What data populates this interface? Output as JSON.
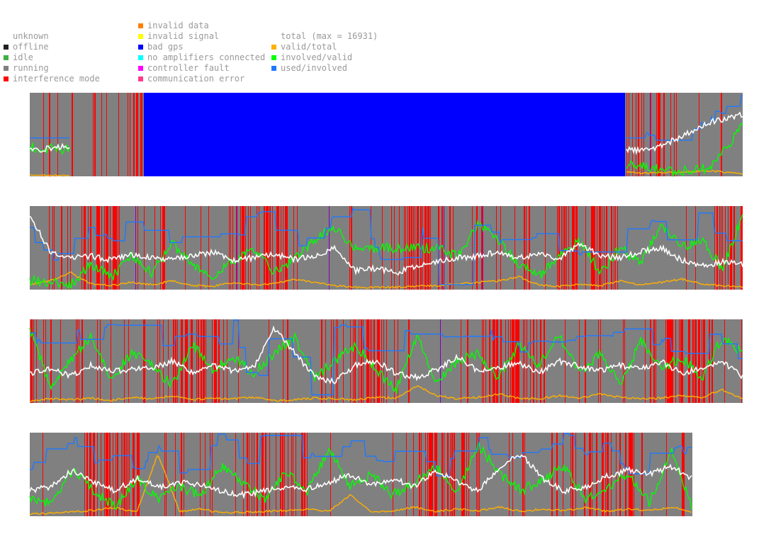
{
  "legend": {
    "status": [
      {
        "label": "unknown",
        "color": ""
      },
      {
        "label": "offline",
        "color": "#202020"
      },
      {
        "label": "idle",
        "color": "#3cb043"
      },
      {
        "label": "running",
        "color": "#808080"
      },
      {
        "label": "interference mode",
        "color": "#ff0000"
      }
    ],
    "errors": [
      {
        "label": "invalid data",
        "color": "#ff8000"
      },
      {
        "label": "invalid signal",
        "color": "#ffff00"
      },
      {
        "label": "bad gps",
        "color": "#0000ff"
      },
      {
        "label": "no amplifiers connected",
        "color": "#00ffff"
      },
      {
        "label": "controller fault",
        "color": "#ff00ff"
      },
      {
        "label": "communication error",
        "color": "#ff3c8c"
      }
    ],
    "metrics": [
      {
        "label": "total (max = 16931)",
        "color": ""
      },
      {
        "label": "valid/total",
        "color": "#ffb000"
      },
      {
        "label": "involved/valid",
        "color": "#00ff00"
      },
      {
        "label": "used/involved",
        "color": "#1e78ff"
      }
    ]
  },
  "colors": {
    "running": "#808080",
    "interference": "#ff0000",
    "bad_gps": "#0000ff",
    "controller_fault": "#8000c0",
    "total": "#ffffff",
    "valid_total": "#ffb000",
    "involved_valid": "#00ff00",
    "used_involved": "#1e78ff"
  },
  "chart_data": {
    "type": "line",
    "total_max": 16931,
    "series_names": [
      "total",
      "valid/total",
      "involved/valid",
      "used/involved"
    ],
    "ylim": [
      0,
      1
    ],
    "rows": [
      {
        "length": 1.0,
        "bad_gps_span": [
          0.16,
          0.835
        ],
        "missing_span": [
          0.057,
          0.835
        ],
        "seed": 11,
        "series": {
          "total": [
            0.3,
            0.35,
            0.33,
            0.36,
            0.35,
            0.34,
            0.28,
            0.45,
            0.9,
            0.55,
            0.35,
            0.4,
            0.45,
            0.3,
            0.42,
            0.38,
            0.32,
            0.36,
            0.34,
            0.3,
            0.45,
            0.65,
            0.75
          ],
          "valid_total": [
            0.0,
            0.0,
            0.0,
            0.0,
            0.0,
            0.0,
            0.0,
            0.02,
            0.05,
            0.03,
            0.01,
            0.02,
            0.06,
            0.03,
            0.04,
            0.08,
            0.02,
            0.1,
            0.05,
            0.03,
            0.04,
            0.06,
            0.02
          ],
          "involved_valid": [
            0.35,
            0.32,
            0.3,
            0.34,
            0.33,
            0.32,
            0.3,
            0.05,
            0.1,
            0.45,
            0.25,
            0.75,
            0.6,
            0.35,
            0.2,
            0.1,
            0.5,
            0.05,
            0.15,
            0.1,
            0.05,
            0.1,
            0.6
          ],
          "used_involved": [
            0.5,
            0.5,
            0.48,
            0.5,
            0.5,
            0.5,
            0.48,
            0.8,
            0.6,
            0.4,
            0.7,
            0.5,
            0.85,
            0.4,
            0.35,
            0.3,
            0.5,
            0.85,
            0.75,
            0.5,
            0.4,
            0.7,
            1.0
          ]
        }
      },
      {
        "length": 1.0,
        "seed": 23,
        "series": {
          "total": [
            0.9,
            0.45,
            0.38,
            0.4,
            0.35,
            0.42,
            0.38,
            0.36,
            0.4,
            0.45,
            0.35,
            0.38,
            0.42,
            0.36,
            0.4,
            0.5,
            0.22,
            0.25,
            0.2,
            0.28,
            0.32,
            0.38,
            0.4,
            0.45,
            0.38,
            0.42,
            0.36,
            0.55,
            0.4,
            0.38,
            0.45,
            0.5,
            0.35,
            0.28,
            0.33,
            0.3
          ],
          "valid_total": [
            0.05,
            0.1,
            0.2,
            0.06,
            0.04,
            0.08,
            0.05,
            0.1,
            0.04,
            0.03,
            0.08,
            0.05,
            0.06,
            0.12,
            0.08,
            0.04,
            0.02,
            0.02,
            0.02,
            0.03,
            0.04,
            0.06,
            0.08,
            0.1,
            0.15,
            0.05,
            0.03,
            0.06,
            0.04,
            0.1,
            0.05,
            0.08,
            0.12,
            0.06,
            0.04,
            0.03
          ],
          "involved_valid": [
            0.1,
            0.08,
            0.05,
            0.3,
            0.15,
            0.4,
            0.2,
            0.55,
            0.3,
            0.15,
            0.35,
            0.5,
            0.2,
            0.35,
            0.6,
            0.75,
            0.5,
            0.5,
            0.5,
            0.5,
            0.5,
            0.4,
            0.8,
            0.6,
            0.3,
            0.15,
            0.4,
            0.6,
            0.2,
            0.5,
            0.3,
            0.8,
            0.5,
            0.6,
            0.25,
            0.9
          ],
          "used_involved": [
            0.7,
            0.3,
            0.6,
            0.75,
            0.55,
            0.9,
            0.65,
            0.5,
            0.85,
            0.7,
            0.6,
            0.95,
            0.8,
            0.45,
            0.7,
            0.85,
            1.0,
            0.5,
            0.0,
            1.0,
            0.0,
            0.9,
            0.8,
            0.6,
            0.55,
            0.7,
            0.5,
            0.4,
            0.85,
            0.6,
            0.95,
            0.7,
            0.5,
            1.0,
            0.55,
            0.7
          ]
        }
      },
      {
        "length": 1.0,
        "seed": 37,
        "series": {
          "total": [
            0.35,
            0.4,
            0.32,
            0.45,
            0.38,
            0.4,
            0.42,
            0.5,
            0.36,
            0.45,
            0.38,
            0.42,
            0.9,
            0.6,
            0.3,
            0.25,
            0.45,
            0.5,
            0.35,
            0.3,
            0.4,
            0.55,
            0.38,
            0.42,
            0.48,
            0.36,
            0.5,
            0.44,
            0.38,
            0.45,
            0.4,
            0.5,
            0.35,
            0.42,
            0.5,
            0.3
          ],
          "valid_total": [
            0.02,
            0.04,
            0.03,
            0.05,
            0.02,
            0.06,
            0.04,
            0.08,
            0.03,
            0.05,
            0.04,
            0.06,
            0.02,
            0.03,
            0.05,
            0.04,
            0.03,
            0.06,
            0.05,
            0.2,
            0.08,
            0.04,
            0.06,
            0.1,
            0.05,
            0.04,
            0.08,
            0.05,
            0.1,
            0.06,
            0.04,
            0.05,
            0.08,
            0.06,
            0.15,
            0.04
          ],
          "involved_valid": [
            0.9,
            0.2,
            0.5,
            0.8,
            0.3,
            0.6,
            0.45,
            0.2,
            0.7,
            0.4,
            0.55,
            0.35,
            0.6,
            0.8,
            0.3,
            0.5,
            0.7,
            0.4,
            0.15,
            0.8,
            0.25,
            0.5,
            0.6,
            0.3,
            0.7,
            0.45,
            0.8,
            0.35,
            0.6,
            0.2,
            0.75,
            0.4,
            0.55,
            0.3,
            0.8,
            0.6
          ],
          "used_involved": [
            0.8,
            0.6,
            0.9,
            0.7,
            1.0,
            0.65,
            0.5,
            0.75,
            0.9,
            0.6,
            1.0,
            0.0,
            1.0,
            0.5,
            0.0,
            1.0,
            0.8,
            0.6,
            1.0,
            0.7,
            0.9,
            0.6,
            1.0,
            0.75,
            0.55,
            0.85,
            0.6,
            0.9,
            0.7,
            0.95,
            0.65,
            0.8,
            0.55,
            0.9,
            0.75,
            0.5
          ]
        }
      },
      {
        "length": 0.929,
        "seed": 53,
        "series": {
          "total": [
            0.3,
            0.35,
            0.55,
            0.4,
            0.3,
            0.45,
            0.35,
            0.4,
            0.38,
            0.3,
            0.25,
            0.3,
            0.35,
            0.32,
            0.4,
            0.5,
            0.38,
            0.45,
            0.35,
            0.55,
            0.4,
            0.3,
            0.6,
            0.75,
            0.45,
            0.3,
            0.35,
            0.48,
            0.55,
            0.5,
            0.6,
            0.45
          ],
          "valid_total": [
            0.02,
            0.03,
            0.05,
            0.06,
            0.1,
            0.04,
            0.75,
            0.05,
            0.08,
            0.03,
            0.04,
            0.05,
            0.06,
            0.08,
            0.05,
            0.25,
            0.04,
            0.06,
            0.1,
            0.05,
            0.08,
            0.06,
            0.1,
            0.05,
            0.08,
            0.06,
            0.1,
            0.05,
            0.08,
            0.06,
            0.1,
            0.05
          ],
          "involved_valid": [
            0.2,
            0.15,
            0.55,
            0.3,
            0.1,
            0.45,
            0.2,
            0.35,
            0.25,
            0.6,
            0.4,
            0.2,
            0.55,
            0.3,
            0.8,
            0.35,
            0.5,
            0.25,
            0.4,
            0.6,
            0.3,
            0.85,
            0.5,
            0.3,
            0.45,
            0.6,
            0.2,
            0.35,
            0.5,
            0.15,
            0.8,
            0.1
          ],
          "used_involved": [
            0.6,
            0.8,
            0.95,
            0.65,
            0.7,
            0.55,
            0.9,
            0.5,
            0.75,
            1.0,
            0.6,
            1.0,
            0.55,
            0.8,
            0.7,
            0.95,
            0.6,
            0.75,
            0.9,
            0.5,
            0.85,
            0.95,
            0.6,
            0.8,
            0.75,
            1.0,
            0.7,
            0.85,
            0.5,
            0.8,
            0.9,
            0.75
          ]
        }
      }
    ]
  }
}
